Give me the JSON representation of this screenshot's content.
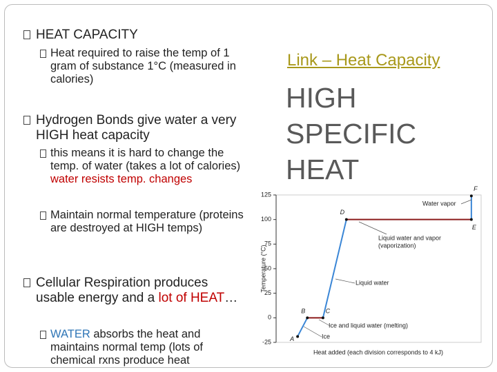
{
  "bullets": [
    {
      "level": 1,
      "parts": [
        {
          "text": "HEAT CAPACITY"
        }
      ]
    },
    {
      "level": 2,
      "parts": [
        {
          "text": "Heat required to raise the temp of 1 gram of substance 1°C (measured in calories)"
        }
      ]
    },
    {
      "level": 1,
      "parts": [
        {
          "text": "Hydrogen Bonds give water a very HIGH heat capacity"
        }
      ]
    },
    {
      "level": 2,
      "parts": [
        {
          "text": "this means it is hard to change the temp. of water (takes a lot of calories) "
        },
        {
          "text": "water resists temp. changes",
          "color": "#c00000"
        }
      ]
    },
    {
      "level": 2,
      "parts": [
        {
          "text": "Maintain normal temperature (proteins are destroyed at HIGH temps)"
        }
      ]
    },
    {
      "level": 1,
      "parts": [
        {
          "text": "Cellular Respiration produces usable energy and a "
        },
        {
          "text": "lot of HEAT",
          "color": "#c00000"
        },
        {
          "text": "…"
        }
      ]
    },
    {
      "level": 2,
      "parts": [
        {
          "text": "WATER",
          "color": "#2e75b6"
        },
        {
          "text": " absorbs the heat and maintains normal temp (lots of chemical rxns produce heat"
        }
      ]
    }
  ],
  "link": "Link – Heat Capacity",
  "headline": [
    "HIGH",
    "SPECIFIC",
    "HEAT"
  ],
  "chart": {
    "ylabel": "Temperature (°C)",
    "xlabel": "Heat added (each division corresponds to 4 kJ)",
    "ylim": [
      -25,
      125
    ],
    "yticks": [
      -25,
      0,
      25,
      50,
      75,
      100,
      125
    ],
    "xlim": [
      0,
      21
    ],
    "rise_color": "#3a86d6",
    "flat_color": "#8b1a1a",
    "points": [
      {
        "label": "A",
        "x": 2.2,
        "y": -19
      },
      {
        "label": "B",
        "x": 3.2,
        "y": 0
      },
      {
        "label": "C",
        "x": 4.8,
        "y": 0
      },
      {
        "label": "D",
        "x": 7.2,
        "y": 100
      },
      {
        "label": "E",
        "x": 20,
        "y": 100
      },
      {
        "label": "F",
        "x": 20,
        "y": 124
      }
    ],
    "annotations": [
      {
        "lines": [
          "Water vapor"
        ]
      },
      {
        "lines": [
          "Liquid water and vapor",
          "(vaporization)"
        ]
      },
      {
        "lines": [
          "Liquid water"
        ]
      },
      {
        "lines": [
          "Ice and liquid water (melting)"
        ]
      },
      {
        "lines": [
          "Ice"
        ]
      }
    ]
  }
}
